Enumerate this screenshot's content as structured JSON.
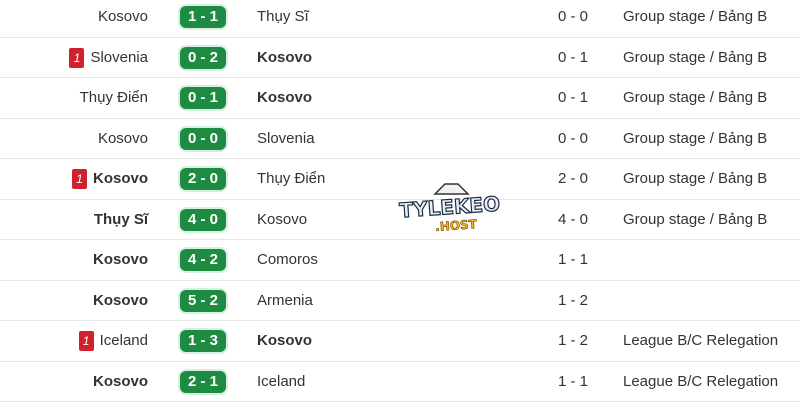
{
  "matches": [
    {
      "home": "Kosovo",
      "away": "Thụy Sĩ",
      "score": "1 - 1",
      "ht": "0 - 0",
      "competition": "Group stage / Bảng B",
      "home_bold": false,
      "away_bold": false,
      "home_red_cards": ""
    },
    {
      "home": "Slovenia",
      "away": "Kosovo",
      "score": "0 - 2",
      "ht": "0 - 1",
      "competition": "Group stage / Bảng B",
      "home_bold": false,
      "away_bold": true,
      "home_red_cards": "1"
    },
    {
      "home": "Thụy Điển",
      "away": "Kosovo",
      "score": "0 - 1",
      "ht": "0 - 1",
      "competition": "Group stage / Bảng B",
      "home_bold": false,
      "away_bold": true,
      "home_red_cards": ""
    },
    {
      "home": "Kosovo",
      "away": "Slovenia",
      "score": "0 - 0",
      "ht": "0 - 0",
      "competition": "Group stage / Bảng B",
      "home_bold": false,
      "away_bold": false,
      "home_red_cards": ""
    },
    {
      "home": "Kosovo",
      "away": "Thụy Điển",
      "score": "2 - 0",
      "ht": "2 - 0",
      "competition": "Group stage / Bảng B",
      "home_bold": true,
      "away_bold": false,
      "home_red_cards": "1"
    },
    {
      "home": "Thụy Sĩ",
      "away": "Kosovo",
      "score": "4 - 0",
      "ht": "4 - 0",
      "competition": "Group stage / Bảng B",
      "home_bold": true,
      "away_bold": false,
      "home_red_cards": ""
    },
    {
      "home": "Kosovo",
      "away": "Comoros",
      "score": "4 - 2",
      "ht": "1 - 1",
      "competition": "",
      "home_bold": true,
      "away_bold": false,
      "home_red_cards": ""
    },
    {
      "home": "Kosovo",
      "away": "Armenia",
      "score": "5 - 2",
      "ht": "1 - 2",
      "competition": "",
      "home_bold": true,
      "away_bold": false,
      "home_red_cards": ""
    },
    {
      "home": "Iceland",
      "away": "Kosovo",
      "score": "1 - 3",
      "ht": "1 - 2",
      "competition": "League B/C Relegation",
      "home_bold": false,
      "away_bold": true,
      "home_red_cards": "1"
    },
    {
      "home": "Kosovo",
      "away": "Iceland",
      "score": "2 - 1",
      "ht": "1 - 1",
      "competition": "League B/C Relegation",
      "home_bold": true,
      "away_bold": false,
      "home_red_cards": ""
    }
  ],
  "watermark": "TYLEKEO .HOST",
  "colors": {
    "score_bg": "#1e8b43",
    "red_card": "#d0212f"
  }
}
